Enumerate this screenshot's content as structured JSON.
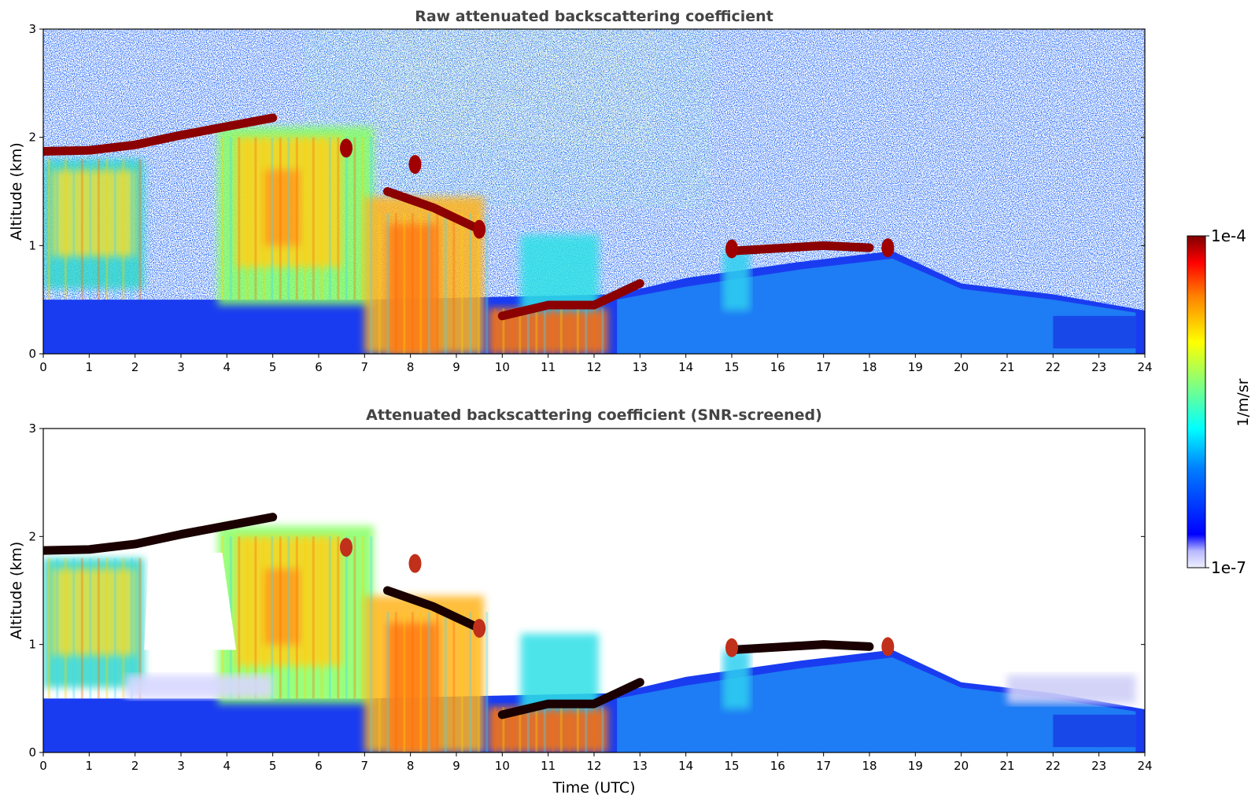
{
  "chart_data": [
    {
      "type": "heatmap",
      "title": "Raw attenuated backscattering coefficient",
      "xlabel": "",
      "ylabel": "Altitude (km)",
      "xlim": [
        0,
        24
      ],
      "ylim": [
        0,
        3
      ],
      "x_ticks": [
        "0",
        "1",
        "2",
        "3",
        "4",
        "5",
        "6",
        "7",
        "8",
        "9",
        "10",
        "11",
        "12",
        "13",
        "14",
        "15",
        "16",
        "17",
        "18",
        "19",
        "20",
        "21",
        "22",
        "23",
        "24"
      ],
      "y_ticks": [
        "0",
        "1",
        "2",
        "3"
      ],
      "cloud_layer": [
        {
          "t": 0,
          "alt": 1.87
        },
        {
          "t": 1,
          "alt": 1.88
        },
        {
          "t": 2,
          "alt": 1.93
        },
        {
          "t": 3,
          "alt": 2.02
        },
        {
          "t": 4,
          "alt": 2.1
        },
        {
          "t": 5,
          "alt": 2.18
        },
        {
          "t": 7.5,
          "alt": 1.5
        },
        {
          "t": 8.5,
          "alt": 1.35
        },
        {
          "t": 9.5,
          "alt": 1.15
        },
        {
          "t": 10,
          "alt": 0.35
        },
        {
          "t": 11,
          "alt": 0.45
        },
        {
          "t": 12,
          "alt": 0.45
        },
        {
          "t": 13,
          "alt": 0.65
        },
        {
          "t": 15,
          "alt": 0.95
        },
        {
          "t": 17,
          "alt": 1.0
        },
        {
          "t": 18,
          "alt": 0.98
        }
      ],
      "boundary_layer_top": [
        {
          "t": 0,
          "alt": 0.5
        },
        {
          "t": 7,
          "alt": 0.5
        },
        {
          "t": 12.5,
          "alt": 0.55
        },
        {
          "t": 14,
          "alt": 0.7
        },
        {
          "t": 16.5,
          "alt": 0.85
        },
        {
          "t": 18.5,
          "alt": 0.95
        },
        {
          "t": 20,
          "alt": 0.65
        },
        {
          "t": 22,
          "alt": 0.55
        },
        {
          "t": 24,
          "alt": 0.4
        }
      ],
      "noise": "high"
    },
    {
      "type": "heatmap",
      "title": "Attenuated backscattering coefficient (SNR-screened)",
      "xlabel": "Time (UTC)",
      "ylabel": "Altitude (km)",
      "xlim": [
        0,
        24
      ],
      "ylim": [
        0,
        3
      ],
      "x_ticks": [
        "0",
        "1",
        "2",
        "3",
        "4",
        "5",
        "6",
        "7",
        "8",
        "9",
        "10",
        "11",
        "12",
        "13",
        "14",
        "15",
        "16",
        "17",
        "18",
        "19",
        "20",
        "21",
        "22",
        "23",
        "24"
      ],
      "y_ticks": [
        "0",
        "1",
        "2",
        "3"
      ],
      "cloud_layer": [
        {
          "t": 0,
          "alt": 1.87
        },
        {
          "t": 1,
          "alt": 1.88
        },
        {
          "t": 2,
          "alt": 1.93
        },
        {
          "t": 3,
          "alt": 2.02
        },
        {
          "t": 4,
          "alt": 2.1
        },
        {
          "t": 5,
          "alt": 2.18
        },
        {
          "t": 7.5,
          "alt": 1.5
        },
        {
          "t": 8.5,
          "alt": 1.35
        },
        {
          "t": 9.5,
          "alt": 1.15
        },
        {
          "t": 10,
          "alt": 0.35
        },
        {
          "t": 11,
          "alt": 0.45
        },
        {
          "t": 12,
          "alt": 0.45
        },
        {
          "t": 13,
          "alt": 0.65
        },
        {
          "t": 15,
          "alt": 0.95
        },
        {
          "t": 17,
          "alt": 1.0
        },
        {
          "t": 18,
          "alt": 0.98
        }
      ],
      "boundary_layer_top": [
        {
          "t": 0,
          "alt": 0.5
        },
        {
          "t": 7,
          "alt": 0.5
        },
        {
          "t": 12.5,
          "alt": 0.55
        },
        {
          "t": 14,
          "alt": 0.7
        },
        {
          "t": 16.5,
          "alt": 0.85
        },
        {
          "t": 18.5,
          "alt": 0.95
        },
        {
          "t": 20,
          "alt": 0.65
        },
        {
          "t": 22,
          "alt": 0.55
        },
        {
          "t": 24,
          "alt": 0.4
        }
      ],
      "noise": "screened"
    }
  ],
  "colorbar": {
    "label": "1/m/sr",
    "max_label": "1e-4",
    "min_label": "1e-7",
    "colormap": "jet",
    "scale": "log"
  }
}
